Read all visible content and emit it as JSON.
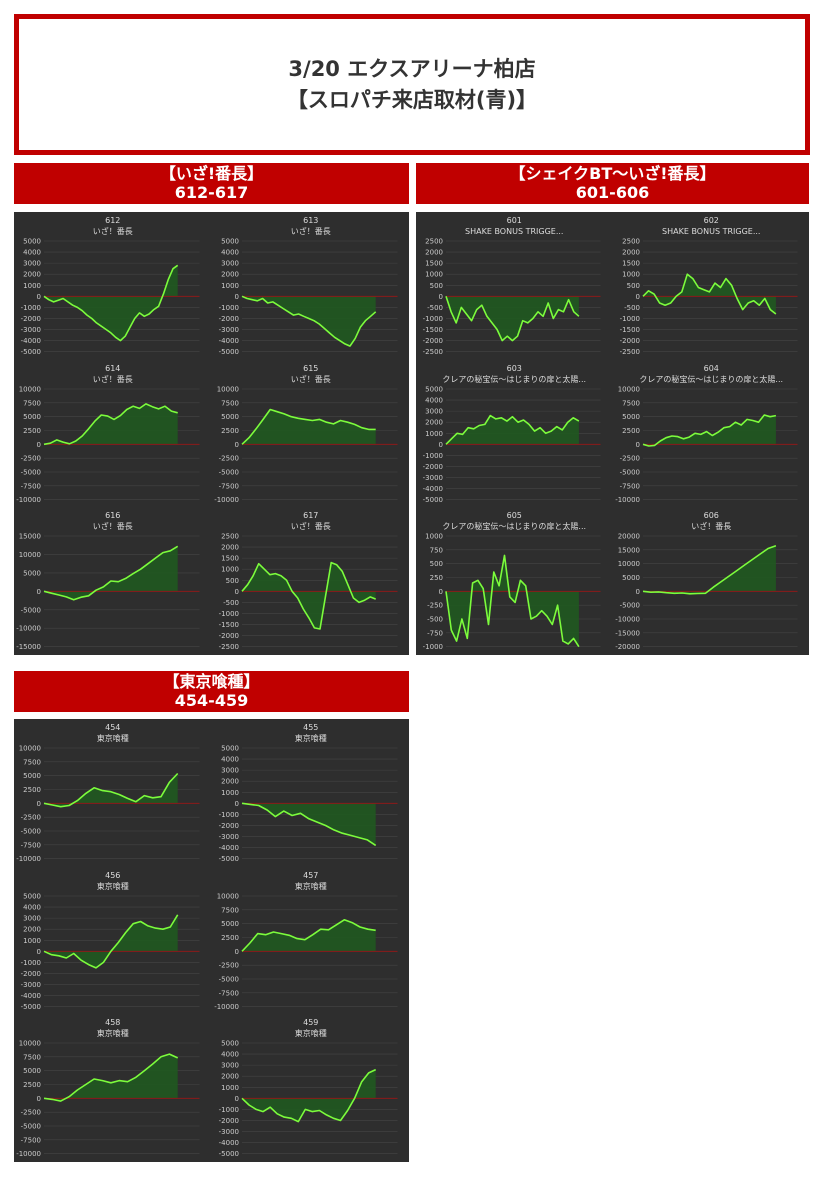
{
  "header": {
    "line1": "3/20 エクスアリーナ柏店",
    "line2": "【スロパチ来店取材(青)】"
  },
  "colors": {
    "accent_red": "#c00000",
    "panel_bg": "#2e2e2e",
    "line": "#7CFC3C",
    "fill": "#1e5a1e",
    "zero_line": "#8b1a1a"
  },
  "groups": [
    {
      "title": "【いざ!番長】",
      "range": "612-617",
      "charts": [
        {
          "number": "612",
          "name": "いざ！番長",
          "type": "area",
          "yticks": [
            5000,
            4000,
            3000,
            2000,
            1000,
            0,
            -1000,
            -2000,
            -3000,
            -4000,
            -5000
          ],
          "ylim": [
            -5000,
            5000
          ],
          "values": [
            0,
            -300,
            -500,
            -350,
            -200,
            -500,
            -800,
            -1000,
            -1300,
            -1700,
            -2000,
            -2400,
            -2700,
            -3000,
            -3300,
            -3700,
            -4000,
            -3600,
            -2800,
            -2000,
            -1500,
            -1800,
            -1600,
            -1200,
            -900,
            200,
            1500,
            2500,
            2800
          ]
        },
        {
          "number": "613",
          "name": "いざ！番長",
          "type": "area",
          "yticks": [
            5000,
            4000,
            3000,
            2000,
            1000,
            0,
            -1000,
            -2000,
            -3000,
            -4000,
            -5000
          ],
          "ylim": [
            -5000,
            5000
          ],
          "values": [
            0,
            -200,
            -300,
            -400,
            -200,
            -600,
            -500,
            -800,
            -1100,
            -1400,
            -1700,
            -1600,
            -1800,
            -2000,
            -2200,
            -2500,
            -2900,
            -3300,
            -3700,
            -4000,
            -4300,
            -4500,
            -3800,
            -2800,
            -2200,
            -1800,
            -1400
          ]
        },
        {
          "number": "614",
          "name": "いざ！番長",
          "type": "area",
          "yticks": [
            10000,
            7500,
            5000,
            2500,
            0,
            -2500,
            -5000,
            -7500,
            -10000
          ],
          "ylim": [
            -10000,
            10000
          ],
          "values": [
            0,
            200,
            800,
            400,
            100,
            600,
            1500,
            2800,
            4200,
            5300,
            5100,
            4500,
            5200,
            6300,
            6900,
            6500,
            7300,
            6800,
            6400,
            6900,
            6000,
            5700
          ]
        },
        {
          "number": "615",
          "name": "いざ！番長",
          "type": "area",
          "yticks": [
            10000,
            7500,
            5000,
            2500,
            0,
            -2500,
            -5000,
            -7500,
            -10000
          ],
          "ylim": [
            -10000,
            10000
          ],
          "values": [
            0,
            1200,
            2800,
            4500,
            6300,
            5900,
            5500,
            5000,
            4700,
            4500,
            4300,
            4500,
            4000,
            3700,
            4300,
            4000,
            3600,
            3000,
            2700,
            2700
          ]
        },
        {
          "number": "616",
          "name": "いざ！番長",
          "type": "area",
          "yticks": [
            15000,
            10000,
            5000,
            0,
            -5000,
            -10000,
            -15000
          ],
          "ylim": [
            -15000,
            15000
          ],
          "values": [
            0,
            -500,
            -1000,
            -1500,
            -2300,
            -1600,
            -1200,
            300,
            1200,
            2800,
            2600,
            3500,
            4800,
            6000,
            7500,
            9000,
            10500,
            11000,
            12200
          ]
        },
        {
          "number": "617",
          "name": "いざ！番長",
          "type": "area",
          "yticks": [
            2500,
            2000,
            1500,
            1000,
            500,
            0,
            -500,
            -1000,
            -1500,
            -2000,
            -2500
          ],
          "ylim": [
            -2500,
            2500
          ],
          "values": [
            0,
            300,
            700,
            1250,
            1000,
            750,
            800,
            700,
            500,
            0,
            -300,
            -800,
            -1200,
            -1650,
            -1700,
            -200,
            1300,
            1200,
            900,
            300,
            -300,
            -500,
            -400,
            -250,
            -350
          ]
        }
      ]
    },
    {
      "title": "【シェイクBT～いざ!番長】",
      "range": "601-606",
      "charts": [
        {
          "number": "601",
          "name": "SHAKE BONUS TRIGGE...",
          "type": "area",
          "yticks": [
            2500,
            2000,
            1500,
            1000,
            500,
            0,
            -500,
            -1000,
            -1500,
            -2000,
            -2500
          ],
          "ylim": [
            -2500,
            2500
          ],
          "values": [
            0,
            -700,
            -1200,
            -500,
            -800,
            -1100,
            -600,
            -400,
            -900,
            -1200,
            -1500,
            -2000,
            -1800,
            -2000,
            -1800,
            -1100,
            -1200,
            -1000,
            -700,
            -900,
            -300,
            -1000,
            -600,
            -700,
            -150,
            -700,
            -900
          ]
        },
        {
          "number": "602",
          "name": "SHAKE BONUS TRIGGE...",
          "type": "area",
          "yticks": [
            2500,
            2000,
            1500,
            1000,
            500,
            0,
            -500,
            -1000,
            -1500,
            -2000,
            -2500
          ],
          "ylim": [
            -2500,
            2500
          ],
          "values": [
            0,
            250,
            100,
            -300,
            -400,
            -300,
            0,
            200,
            1000,
            800,
            400,
            300,
            200,
            600,
            400,
            800,
            500,
            -100,
            -600,
            -300,
            -200,
            -400,
            -100,
            -600,
            -800
          ]
        },
        {
          "number": "603",
          "name": "クレアの秘宝伝～はじまりの扉と太陽...",
          "type": "area",
          "yticks": [
            5000,
            4000,
            3000,
            2000,
            1000,
            0,
            -1000,
            -2000,
            -3000,
            -4000,
            -5000
          ],
          "ylim": [
            -5000,
            5000
          ],
          "values": [
            0,
            500,
            1000,
            900,
            1500,
            1400,
            1700,
            1800,
            2600,
            2300,
            2400,
            2100,
            2500,
            2000,
            2200,
            1800,
            1200,
            1500,
            1000,
            1200,
            1600,
            1300,
            2000,
            2400,
            2100
          ]
        },
        {
          "number": "604",
          "name": "クレアの秘宝伝～はじまりの扉と太陽...",
          "type": "area",
          "yticks": [
            10000,
            7500,
            5000,
            2500,
            0,
            -2500,
            -5000,
            -7500,
            -10000
          ],
          "ylim": [
            -10000,
            10000
          ],
          "values": [
            0,
            -300,
            -200,
            600,
            1200,
            1500,
            1400,
            1000,
            1300,
            2000,
            1800,
            2300,
            1600,
            2200,
            3000,
            3200,
            4000,
            3500,
            4500,
            4300,
            4000,
            5300,
            5000,
            5200
          ]
        },
        {
          "number": "605",
          "name": "クレアの秘宝伝～はじまりの扉と太陽...",
          "type": "area",
          "yticks": [
            1000,
            750,
            500,
            250,
            0,
            -250,
            -500,
            -750,
            -1000
          ],
          "ylim": [
            -1000,
            1000
          ],
          "values": [
            0,
            -700,
            -900,
            -500,
            -850,
            150,
            200,
            50,
            -600,
            350,
            100,
            650,
            -100,
            -200,
            200,
            100,
            -500,
            -450,
            -350,
            -450,
            -600,
            -250,
            -900,
            -950,
            -850,
            -1000
          ]
        },
        {
          "number": "606",
          "name": "いざ！番長",
          "type": "area",
          "yticks": [
            20000,
            15000,
            10000,
            5000,
            0,
            -5000,
            -10000,
            -15000,
            -20000
          ],
          "ylim": [
            -20000,
            20000
          ],
          "values": [
            0,
            -300,
            -200,
            -500,
            -700,
            -600,
            -900,
            -800,
            -700,
            1500,
            3500,
            5500,
            7500,
            9500,
            11500,
            13500,
            15500,
            16500
          ]
        }
      ]
    },
    {
      "title": "【東京喰種】",
      "range": "454-459",
      "charts": [
        {
          "number": "454",
          "name": "東京喰種",
          "type": "area",
          "yticks": [
            10000,
            7500,
            5000,
            2500,
            0,
            -2500,
            -5000,
            -7500,
            -10000
          ],
          "ylim": [
            -10000,
            10000
          ],
          "values": [
            0,
            -300,
            -600,
            -400,
            500,
            1800,
            2800,
            2300,
            2100,
            1600,
            900,
            300,
            1400,
            1000,
            1200,
            3800,
            5400
          ]
        },
        {
          "number": "455",
          "name": "東京喰種",
          "type": "area",
          "yticks": [
            5000,
            4000,
            3000,
            2000,
            1000,
            0,
            -1000,
            -2000,
            -3000,
            -4000,
            -5000
          ],
          "ylim": [
            -5000,
            5000
          ],
          "values": [
            0,
            -100,
            -200,
            -600,
            -1200,
            -700,
            -1100,
            -900,
            -1400,
            -1700,
            -2000,
            -2400,
            -2700,
            -2900,
            -3100,
            -3300,
            -3800
          ]
        },
        {
          "number": "456",
          "name": "東京喰種",
          "type": "area",
          "yticks": [
            5000,
            4000,
            3000,
            2000,
            1000,
            0,
            -1000,
            -2000,
            -3000,
            -4000,
            -5000
          ],
          "ylim": [
            -5000,
            5000
          ],
          "values": [
            0,
            -300,
            -400,
            -600,
            -200,
            -800,
            -1200,
            -1500,
            -1000,
            0,
            800,
            1700,
            2500,
            2700,
            2300,
            2100,
            2000,
            2200,
            3300
          ]
        },
        {
          "number": "457",
          "name": "東京喰種",
          "type": "area",
          "yticks": [
            10000,
            7500,
            5000,
            2500,
            0,
            -2500,
            -5000,
            -7500,
            -10000
          ],
          "ylim": [
            -10000,
            10000
          ],
          "values": [
            0,
            1500,
            3200,
            3000,
            3500,
            3200,
            2900,
            2300,
            2100,
            3000,
            4000,
            3900,
            4800,
            5700,
            5200,
            4400,
            4000,
            3800
          ]
        },
        {
          "number": "458",
          "name": "東京喰種",
          "type": "area",
          "yticks": [
            10000,
            7500,
            5000,
            2500,
            0,
            -2500,
            -5000,
            -7500,
            -10000
          ],
          "ylim": [
            -10000,
            10000
          ],
          "values": [
            0,
            -200,
            -500,
            300,
            1500,
            2500,
            3500,
            3200,
            2800,
            3200,
            3000,
            3800,
            5000,
            6200,
            7500,
            8000,
            7300
          ]
        },
        {
          "number": "459",
          "name": "東京喰種",
          "type": "area",
          "yticks": [
            5000,
            4000,
            3000,
            2000,
            1000,
            0,
            -1000,
            -2000,
            -3000,
            -4000,
            -5000
          ],
          "ylim": [
            -5000,
            5000
          ],
          "values": [
            0,
            -600,
            -1000,
            -1200,
            -800,
            -1400,
            -1700,
            -1800,
            -2100,
            -1000,
            -1200,
            -1100,
            -1500,
            -1800,
            -2000,
            -1100,
            0,
            1500,
            2300,
            2600
          ]
        }
      ]
    }
  ]
}
